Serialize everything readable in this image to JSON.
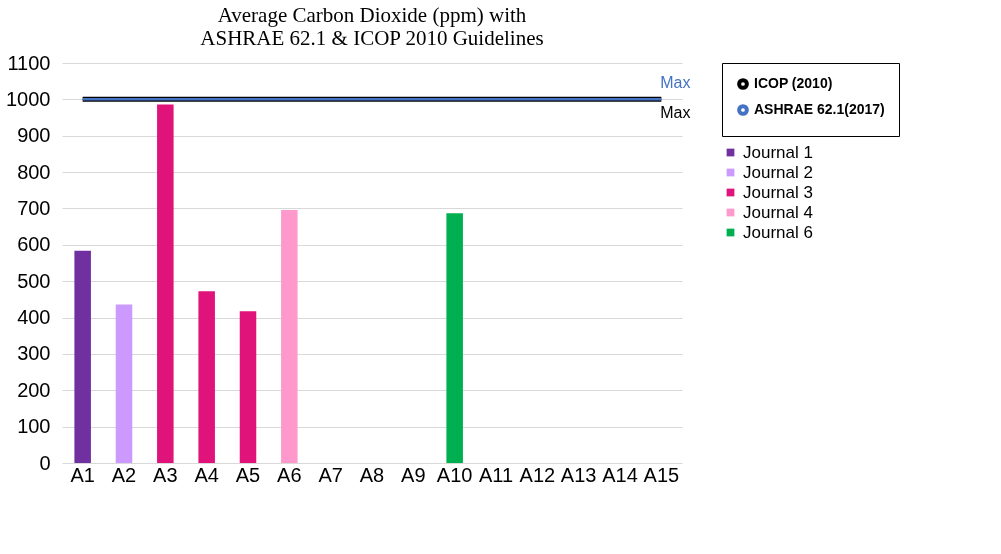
{
  "chart_data": {
    "type": "bar",
    "title": "Average Carbon Dioxide (ppm) with\nASHRAE 62.1 & ICOP 2010 Guidelines",
    "categories": [
      "A1",
      "A2",
      "A3",
      "A4",
      "A5",
      "A6",
      "A7",
      "A8",
      "A9",
      "A10",
      "A11",
      "A12",
      "A13",
      "A14",
      "A15"
    ],
    "series": [
      {
        "type": "line",
        "name": "ICOP (2010)",
        "color": "#000000",
        "values": [
          1000,
          1000,
          1000,
          1000,
          1000,
          1000,
          1000,
          1000,
          1000,
          1000,
          1000,
          1000,
          1000,
          1000,
          1000
        ]
      },
      {
        "type": "line",
        "name": "ASHRAE 62.1(2017)",
        "color": "#4472c4",
        "values": [
          1000,
          1000,
          1000,
          1000,
          1000,
          1000,
          1000,
          1000,
          1000,
          1000,
          1000,
          1000,
          1000,
          1000,
          1000
        ]
      },
      {
        "name": "Journal 1",
        "color": "#7030a0",
        "values": [
          584,
          null,
          null,
          null,
          null,
          null,
          null,
          null,
          null,
          null,
          null,
          null,
          null,
          null,
          null
        ]
      },
      {
        "name": "Journal 2",
        "color": "#cc99ff",
        "values": [
          null,
          436,
          null,
          null,
          null,
          null,
          null,
          null,
          null,
          null,
          null,
          null,
          null,
          null,
          null
        ]
      },
      {
        "name": "Journal 3",
        "color": "#e0137a",
        "values": [
          null,
          null,
          986,
          472,
          417,
          null,
          null,
          null,
          null,
          null,
          null,
          null,
          null,
          null,
          null
        ]
      },
      {
        "name": "Journal 4",
        "color": "#ff99cc",
        "values": [
          null,
          null,
          null,
          null,
          null,
          696,
          null,
          null,
          null,
          null,
          null,
          null,
          null,
          null,
          null
        ]
      },
      {
        "name": "Journal 6",
        "color": "#00b050",
        "values": [
          null,
          null,
          null,
          null,
          null,
          null,
          null,
          null,
          null,
          687,
          null,
          null,
          null,
          null,
          null
        ]
      }
    ],
    "annotations": [
      {
        "text": "Max",
        "x": "A15",
        "y": 1000
      },
      {
        "text": "Max",
        "x": "A15",
        "y": 1000
      }
    ],
    "ylim": [
      0,
      1100
    ],
    "yticks": [
      0,
      100,
      200,
      300,
      400,
      500,
      600,
      700,
      800,
      900,
      1000,
      1100
    ],
    "grid": "y",
    "legend": "right"
  }
}
